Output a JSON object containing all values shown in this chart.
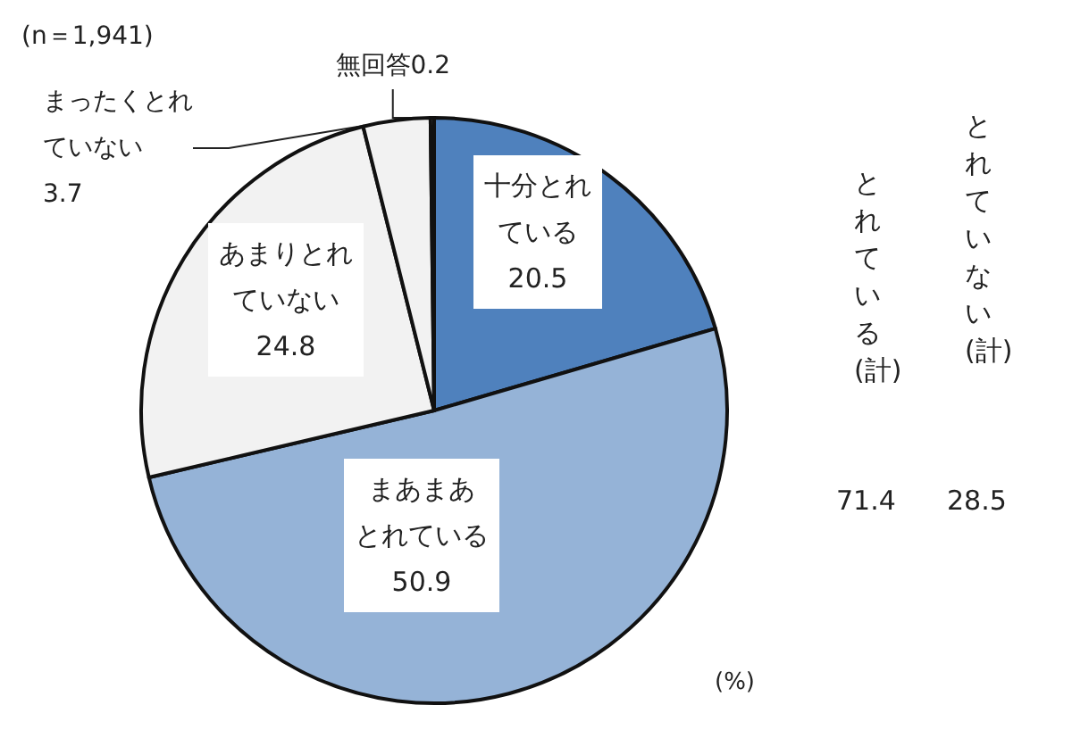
{
  "chart_data": {
    "type": "pie",
    "categories": [
      "十分とれている",
      "まあまあとれている",
      "あまりとれていない",
      "まったくとれていない",
      "無回答"
    ],
    "values": [
      20.5,
      50.9,
      24.8,
      3.7,
      0.2
    ],
    "colors": [
      "#4f81bd",
      "#95b3d7",
      "#f2f2f2",
      "#f2f2f2",
      "#ffffff"
    ],
    "data_labels": true,
    "legend": false,
    "annotations": [
      "(n＝1,941)",
      "(%)",
      "とれている(計)",
      "71.4",
      "とれていない(計)",
      "28.5"
    ]
  }
}
